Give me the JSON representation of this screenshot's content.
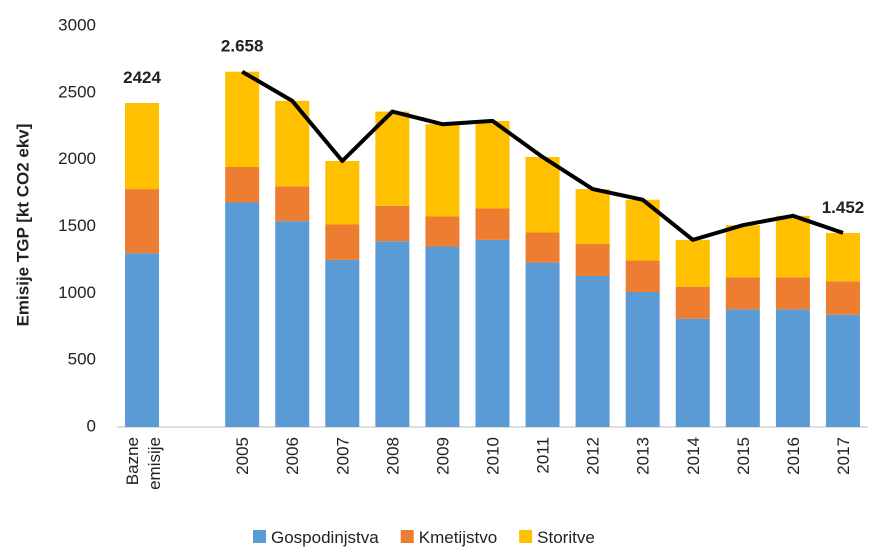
{
  "chart_data": {
    "type": "stacked_bar_line",
    "y_label": "Emisije TGP [kt CO2 ekv]",
    "categories": [
      "Bazne emisije",
      null,
      "2005",
      "2006",
      "2007",
      "2008",
      "2009",
      "2010",
      "2011",
      "2012",
      "2013",
      "2014",
      "2015",
      "2016",
      "2017"
    ],
    "series": [
      {
        "name": "Gospodinjstva",
        "color": "#5b9bd5",
        "values": [
          1300,
          null,
          1680,
          1540,
          1250,
          1390,
          1350,
          1400,
          1230,
          1130,
          1010,
          810,
          880,
          880,
          840
        ]
      },
      {
        "name": "Kmetijstvo",
        "color": "#ed7d31",
        "values": [
          480,
          null,
          265,
          260,
          265,
          265,
          225,
          235,
          225,
          240,
          235,
          240,
          240,
          240,
          250
        ]
      },
      {
        "name": "Storitve",
        "color": "#ffc000",
        "values": [
          644,
          null,
          713,
          640,
          475,
          705,
          690,
          655,
          565,
          410,
          455,
          350,
          390,
          460,
          362
        ]
      }
    ],
    "line": {
      "color": "#000000",
      "values": [
        2424,
        null,
        2658,
        2440,
        1990,
        2360,
        2265,
        2290,
        2020,
        1780,
        1700,
        1400,
        1510,
        1580,
        1452
      ],
      "value_labels": [
        "2424",
        null,
        "2.658",
        null,
        null,
        null,
        null,
        null,
        null,
        null,
        null,
        null,
        null,
        null,
        "1.452"
      ]
    },
    "ylim": [
      0,
      3000
    ],
    "yticks": [
      0,
      500,
      1000,
      1500,
      2000,
      2500,
      3000
    ],
    "legend": "bottom"
  }
}
